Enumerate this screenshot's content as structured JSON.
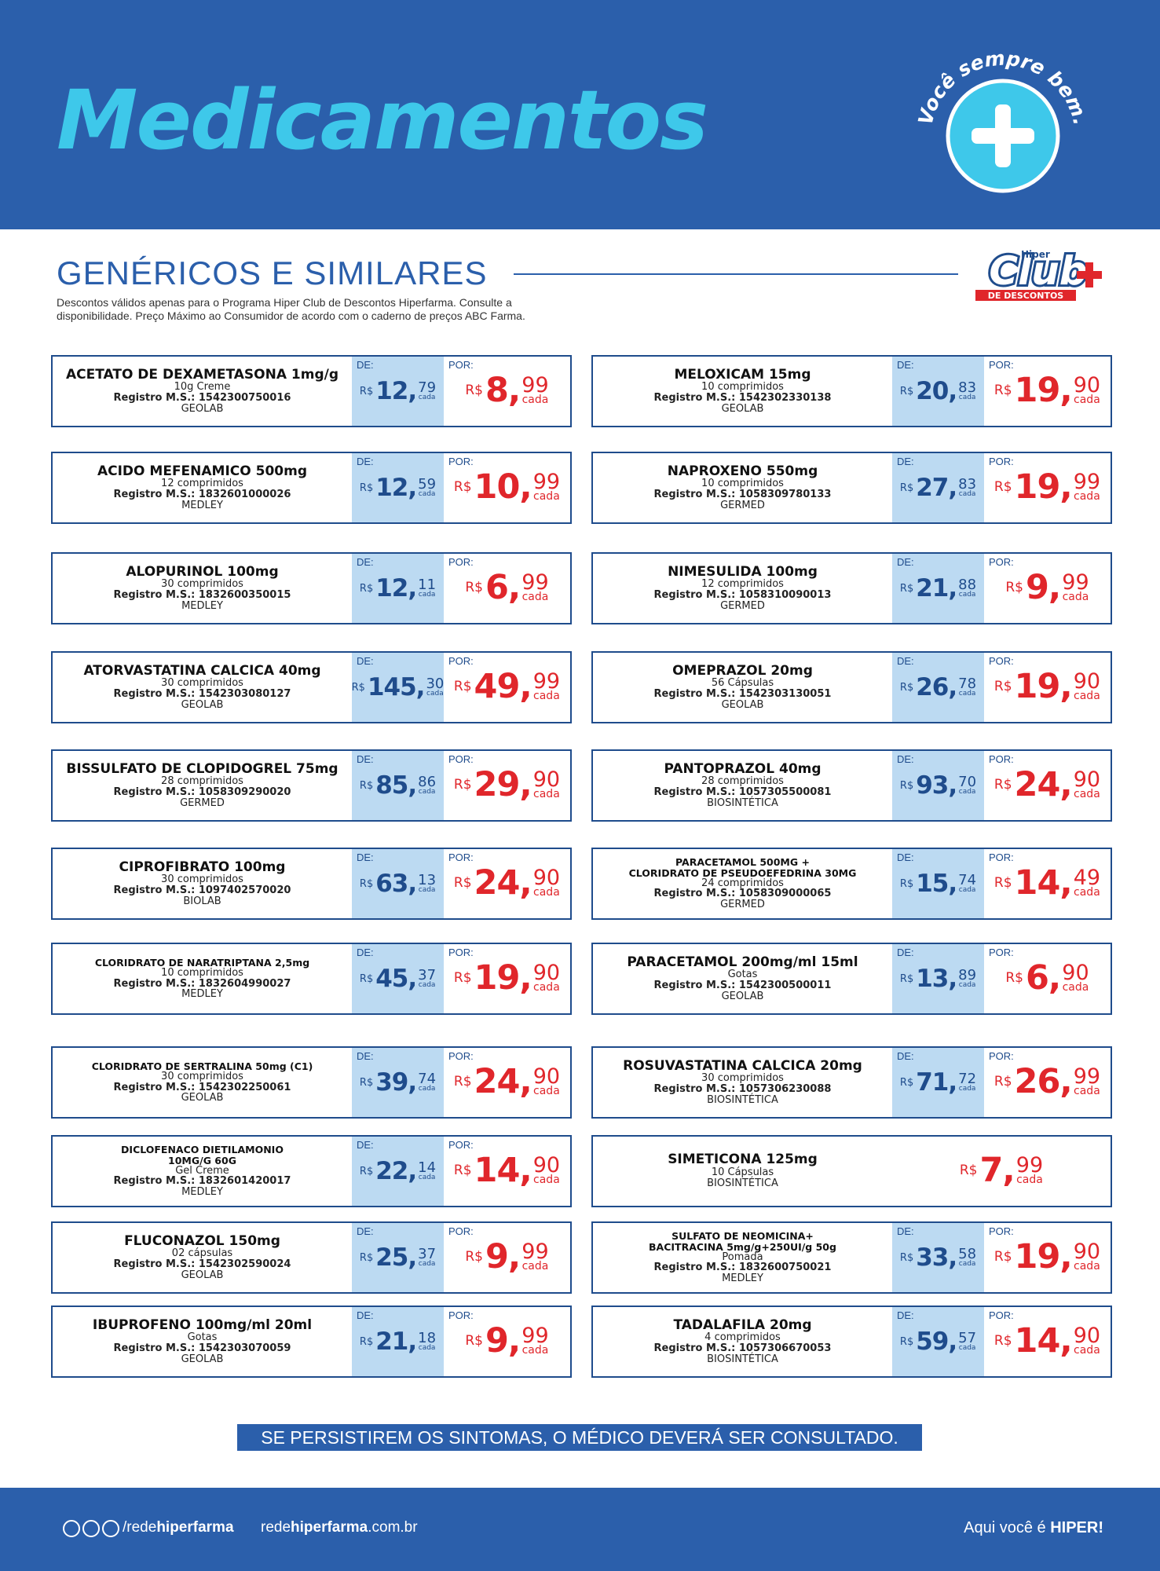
{
  "header": {
    "title": "Medicamentos",
    "slogan": "Você sempre bem."
  },
  "section": {
    "title": "GENÉRICOS E SIMILARES",
    "disclaimer": [
      "Descontos válidos apenas para o Programa Hiper Club de Descontos Hiperfarma. Consulte a",
      "disponibilidade. Preço Máximo ao Consumidor de acordo com o caderno de preços ABC Farma."
    ],
    "logo": {
      "top": "Hiper",
      "main": "Club",
      "bottom": "DE DESCONTOS"
    }
  },
  "labels": {
    "de": "DE:",
    "por": "POR:",
    "currency": "R$",
    "each": "cada"
  },
  "products": {
    "left": [
      {
        "name": [
          "ACETATO DE DEXAMETASONA 1mg/g"
        ],
        "details": "10g Creme",
        "registry": "Registro M.S.: 1542300750016",
        "lab": "GEOLAB",
        "de": {
          "int": "12,",
          "cents": "79"
        },
        "por": {
          "int": "8,",
          "cents": "99"
        }
      },
      {
        "name": [
          "ACIDO MEFENAMICO 500mg"
        ],
        "details": "12 comprimidos",
        "registry": "Registro M.S.: 1832601000026",
        "lab": "MEDLEY",
        "de": {
          "int": "12,",
          "cents": "59"
        },
        "por": {
          "int": "10,",
          "cents": "99"
        }
      },
      {
        "name": [
          "ALOPURINOL 100mg"
        ],
        "details": "30 comprimidos",
        "registry": "Registro M.S.: 1832600350015",
        "lab": "MEDLEY",
        "de": {
          "int": "12,",
          "cents": "11"
        },
        "por": {
          "int": "6,",
          "cents": "99"
        }
      },
      {
        "name": [
          "ATORVASTATINA CALCICA 40mg"
        ],
        "details": "30 comprimidos",
        "registry": "Registro M.S.: 1542303080127",
        "lab": "GEOLAB",
        "de": {
          "int": "145,",
          "cents": "30"
        },
        "por": {
          "int": "49,",
          "cents": "99"
        }
      },
      {
        "name": [
          "BISSULFATO DE CLOPIDOGREL 75mg"
        ],
        "details": "28 comprimidos",
        "registry": "Registro M.S.: 1058309290020",
        "lab": "GERMED",
        "de": {
          "int": "85,",
          "cents": "86"
        },
        "por": {
          "int": "29,",
          "cents": "90"
        }
      },
      {
        "name": [
          "CIPROFIBRATO 100mg"
        ],
        "details": "30 comprimidos",
        "registry": "Registro M.S.: 1097402570020",
        "lab": "BIOLAB",
        "de": {
          "int": "63,",
          "cents": "13"
        },
        "por": {
          "int": "24,",
          "cents": "90"
        }
      },
      {
        "name": [
          "CLORIDRATO DE NARATRIPTANA 2,5mg"
        ],
        "details": "10 comprimidos",
        "registry": "Registro M.S.: 1832604990027",
        "lab": "MEDLEY",
        "de": {
          "int": "45,",
          "cents": "37"
        },
        "por": {
          "int": "19,",
          "cents": "90"
        }
      },
      {
        "name": [
          "CLORIDRATO DE SERTRALINA 50mg (C1)"
        ],
        "details": "30 comprimidos",
        "registry": "Registro M.S.: 1542302250061",
        "lab": "GEOLAB",
        "de": {
          "int": "39,",
          "cents": "74"
        },
        "por": {
          "int": "24,",
          "cents": "90"
        }
      },
      {
        "name": [
          "DICLOFENACO DIETILAMONIO",
          "10MG/G 60G"
        ],
        "details": "Gel Creme",
        "registry": "Registro M.S.: 1832601420017",
        "lab": "MEDLEY",
        "de": {
          "int": "22,",
          "cents": "14"
        },
        "por": {
          "int": "14,",
          "cents": "90"
        }
      },
      {
        "name": [
          "FLUCONAZOL 150mg"
        ],
        "details": "02 cápsulas",
        "registry": "Registro M.S.: 1542302590024",
        "lab": "GEOLAB",
        "de": {
          "int": "25,",
          "cents": "37"
        },
        "por": {
          "int": "9,",
          "cents": "99"
        }
      },
      {
        "name": [
          "IBUPROFENO 100mg/ml 20ml"
        ],
        "details": "Gotas",
        "registry": "Registro M.S.: 1542303070059",
        "lab": "GEOLAB",
        "de": {
          "int": "21,",
          "cents": "18"
        },
        "por": {
          "int": "9,",
          "cents": "99"
        }
      }
    ],
    "right": [
      {
        "name": [
          "MELOXICAM 15mg"
        ],
        "details": "10 comprimidos",
        "registry": "Registro M.S.: 1542302330138",
        "lab": "GEOLAB",
        "de": {
          "int": "20,",
          "cents": "83"
        },
        "por": {
          "int": "19,",
          "cents": "90"
        }
      },
      {
        "name": [
          "NAPROXENO 550mg"
        ],
        "details": "10 comprimidos",
        "registry": "Registro M.S.: 1058309780133",
        "lab": "GERMED",
        "de": {
          "int": "27,",
          "cents": "83"
        },
        "por": {
          "int": "19,",
          "cents": "99"
        }
      },
      {
        "name": [
          "NIMESULIDA 100mg"
        ],
        "details": "12 comprimidos",
        "registry": "Registro M.S.: 1058310090013",
        "lab": "GERMED",
        "de": {
          "int": "21,",
          "cents": "88"
        },
        "por": {
          "int": "9,",
          "cents": "99"
        }
      },
      {
        "name": [
          "OMEPRAZOL 20mg"
        ],
        "details": "56 Cápsulas",
        "registry": "Registro M.S.: 1542303130051",
        "lab": "GEOLAB",
        "de": {
          "int": "26,",
          "cents": "78"
        },
        "por": {
          "int": "19,",
          "cents": "90"
        }
      },
      {
        "name": [
          "PANTOPRAZOL 40mg"
        ],
        "details": "28 comprimidos",
        "registry": "Registro M.S.: 1057305500081",
        "lab": "BIOSINTÉTICA",
        "de": {
          "int": "93,",
          "cents": "70"
        },
        "por": {
          "int": "24,",
          "cents": "90"
        }
      },
      {
        "name": [
          "PARACETAMOL 500MG +",
          "CLORIDRATO DE PSEUDOEFEDRINA 30MG"
        ],
        "details": "24 comprimidos",
        "registry": "Registro M.S.: 1058309000065",
        "lab": "GERMED",
        "de": {
          "int": "15,",
          "cents": "74"
        },
        "por": {
          "int": "14,",
          "cents": "49"
        }
      },
      {
        "name": [
          "PARACETAMOL 200mg/ml 15ml"
        ],
        "details": "Gotas",
        "registry": "Registro M.S.: 1542300500011",
        "lab": "GEOLAB",
        "de": {
          "int": "13,",
          "cents": "89"
        },
        "por": {
          "int": "6,",
          "cents": "90"
        }
      },
      {
        "name": [
          "ROSUVASTATINA CALCICA 20mg"
        ],
        "details": "30 comprimidos",
        "registry": "Registro M.S.: 1057306230088",
        "lab": "BIOSINTÉTICA",
        "de": {
          "int": "71,",
          "cents": "72"
        },
        "por": {
          "int": "26,",
          "cents": "99"
        }
      },
      {
        "name": [
          "SIMETICONA 125mg"
        ],
        "details": "10 Cápsulas",
        "lab": "BIOSINTÉTICA",
        "por": {
          "int": "7,",
          "cents": "99"
        }
      },
      {
        "name": [
          "SULFATO DE NEOMICINA+",
          "BACITRACINA 5mg/g+250UI/g 50g"
        ],
        "details": "Pomada",
        "registry": "Registro M.S.: 1832600750021",
        "lab": "MEDLEY",
        "de": {
          "int": "33,",
          "cents": "58"
        },
        "por": {
          "int": "19,",
          "cents": "90"
        }
      },
      {
        "name": [
          "TADALAFILA 20mg"
        ],
        "details": "4 comprimidos",
        "registry": "Registro M.S.: 1057306670053",
        "lab": "BIOSINTÉTICA",
        "de": {
          "int": "59,",
          "cents": "57"
        },
        "por": {
          "int": "14,",
          "cents": "90"
        }
      }
    ]
  },
  "warning": "SE PERSISTIREM OS SINTOMAS, O MÉDICO DEVERÁ SER CONSULTADO.",
  "footer": {
    "social": {
      "prefix": "/rede",
      "bold": "hiperfarma"
    },
    "site": {
      "prefix": "rede",
      "bold": "hiperfarma",
      "suffix": ".com.br"
    },
    "slogan": {
      "prefix": "Aqui você é ",
      "bold": "HIPER!"
    }
  }
}
